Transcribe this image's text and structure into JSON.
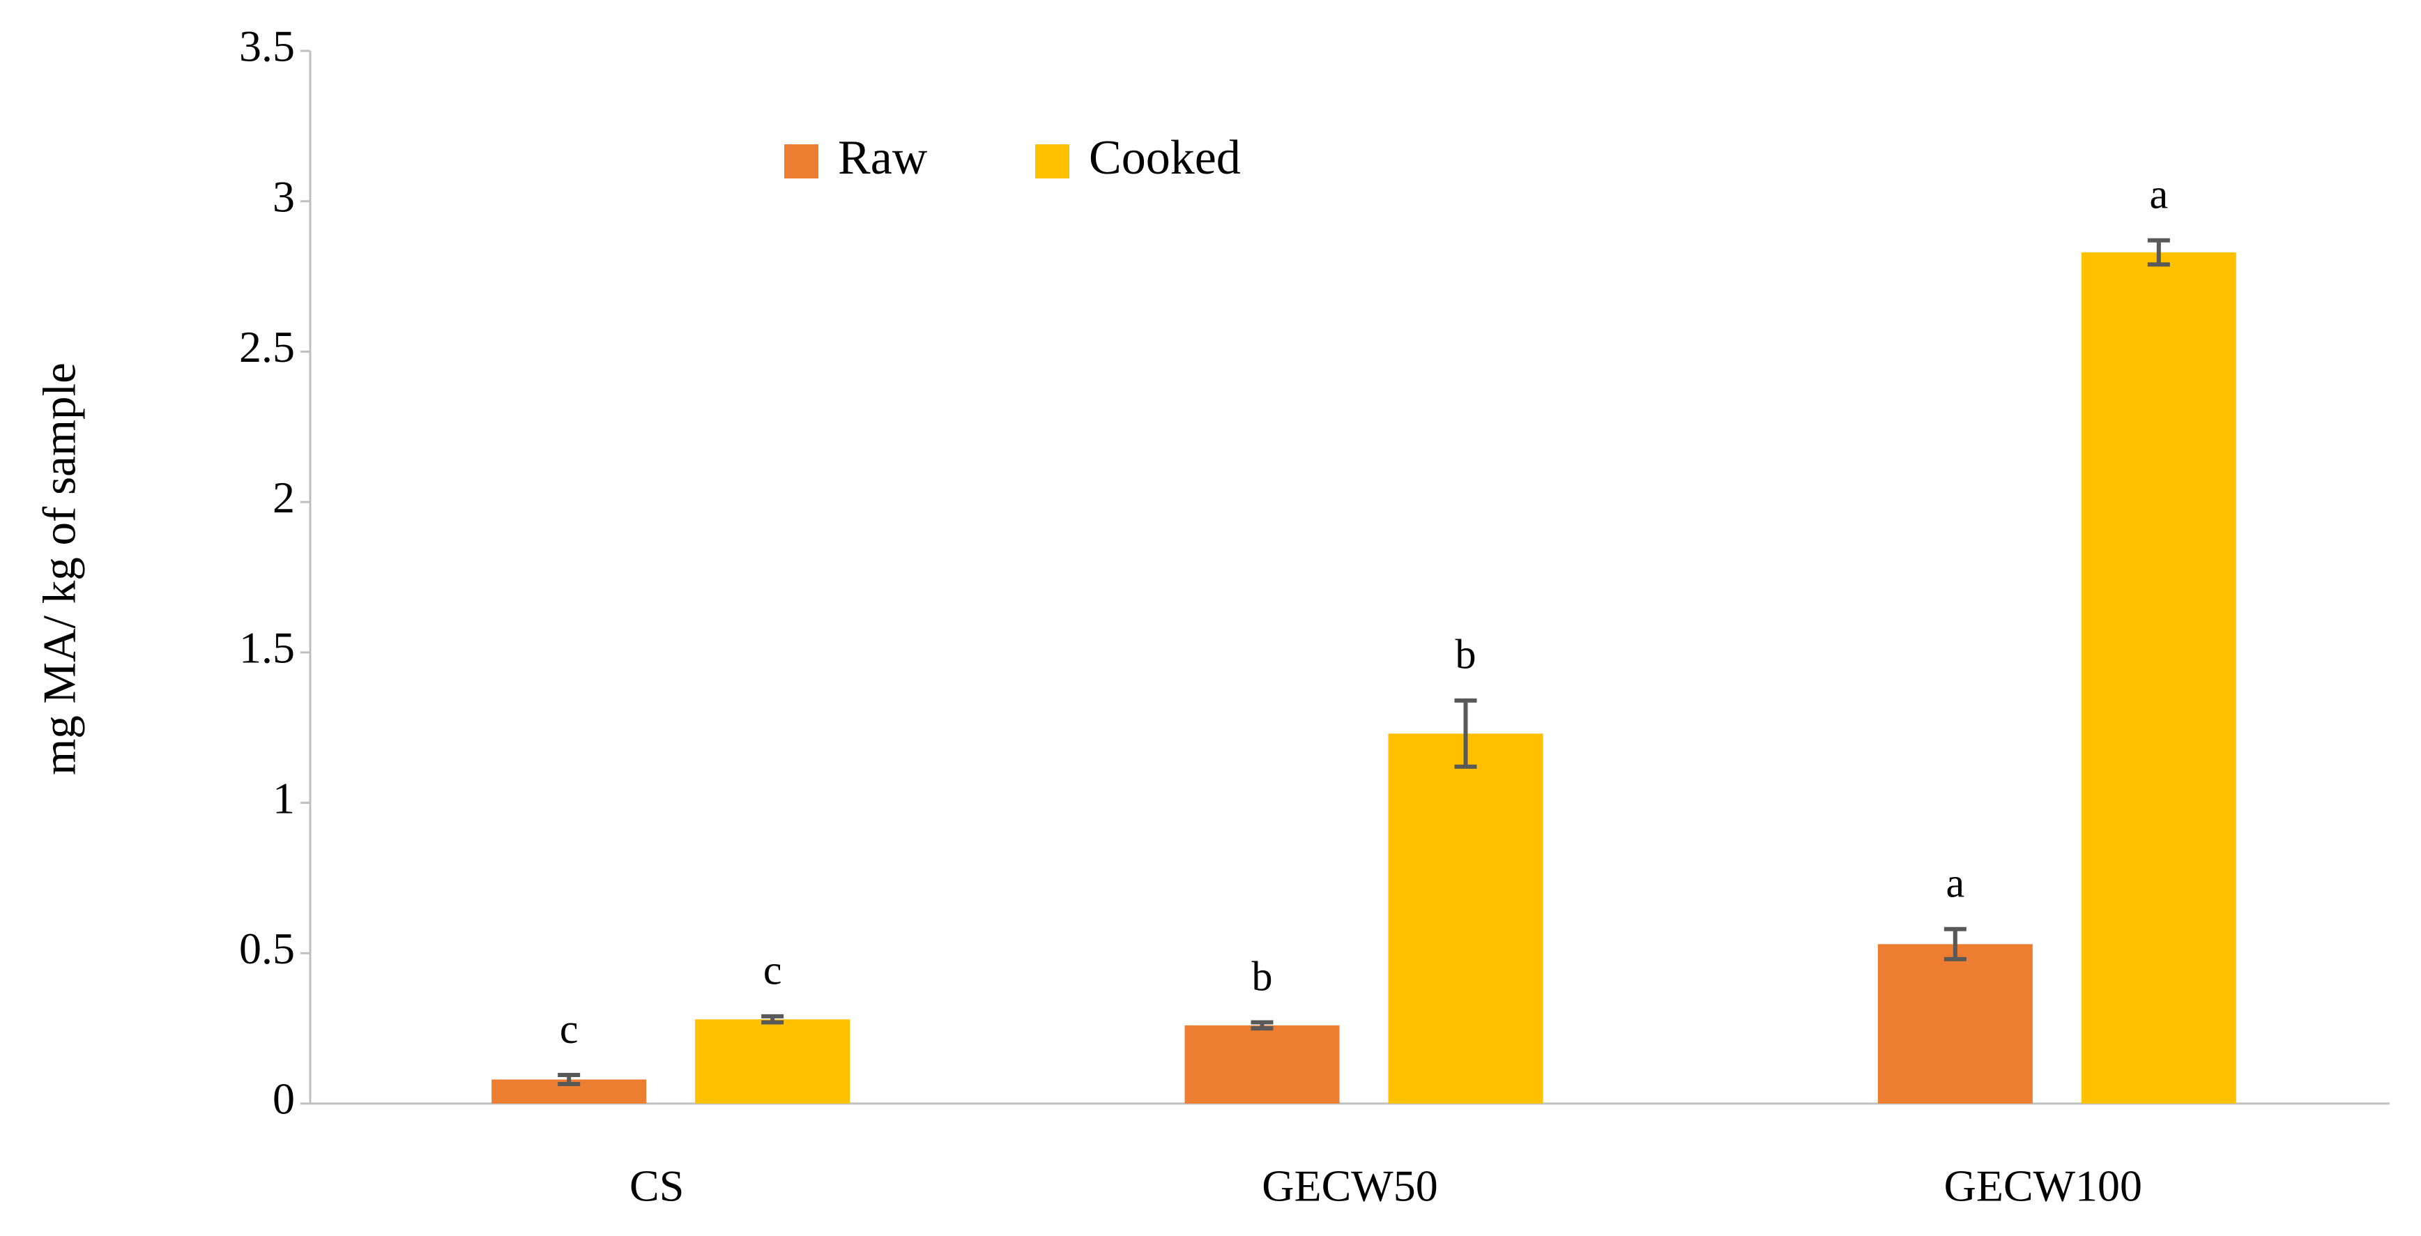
{
  "chart_data": {
    "type": "bar",
    "y_label": "mg MA/ kg of sample",
    "categories": [
      "CS",
      "GECW50",
      "GECW100"
    ],
    "series": [
      {
        "name": "Raw",
        "color": "#ed7d31",
        "values": [
          0.08,
          0.26,
          0.53
        ],
        "errors": [
          0.015,
          0.01,
          0.05
        ],
        "letters": [
          "c",
          "b",
          "a"
        ]
      },
      {
        "name": "Cooked",
        "color": "#ffc000",
        "values": [
          0.28,
          1.23,
          2.83
        ],
        "errors": [
          0.01,
          0.11,
          0.04
        ],
        "letters": [
          "c",
          "b",
          "a"
        ]
      }
    ],
    "ylim": [
      0,
      3.5
    ],
    "yticks": [
      0,
      0.5,
      1,
      1.5,
      2,
      2.5,
      3,
      3.5
    ],
    "legend": "top"
  }
}
